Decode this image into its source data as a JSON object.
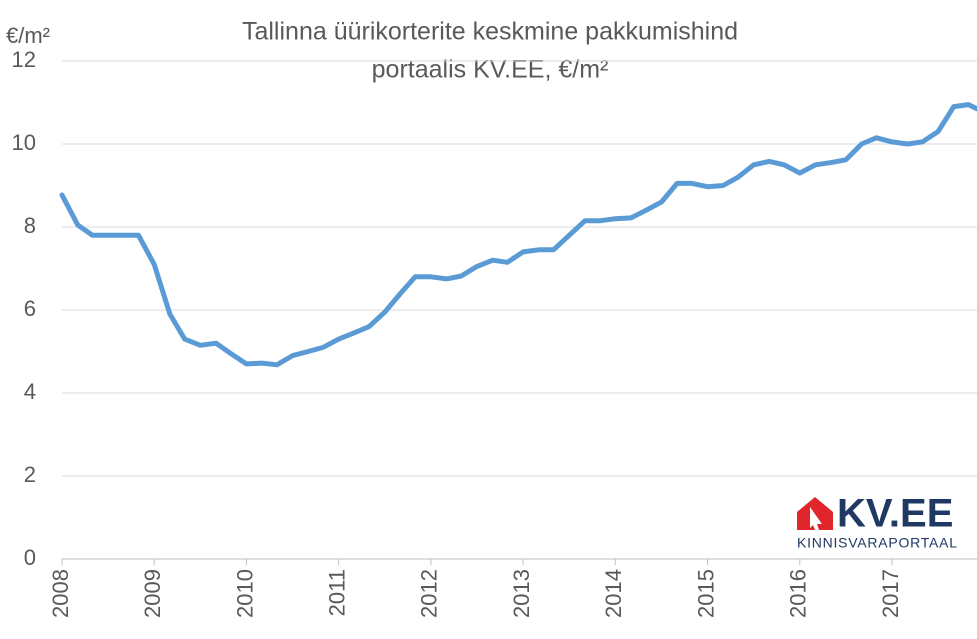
{
  "chart_data": {
    "type": "line",
    "title": [
      "Tallinna üürikorterite keskmine pakkumishind",
      "portaalis KV.EE, €/m²"
    ],
    "y_label": "€/m²",
    "x": [
      2008.0,
      2008.17,
      2008.33,
      2008.5,
      2008.67,
      2008.83,
      2009.0,
      2009.17,
      2009.33,
      2009.5,
      2009.67,
      2009.83,
      2010.0,
      2010.17,
      2010.33,
      2010.5,
      2010.67,
      2010.83,
      2011.0,
      2011.17,
      2011.33,
      2011.5,
      2011.67,
      2011.83,
      2012.0,
      2012.17,
      2012.33,
      2012.5,
      2012.67,
      2012.83,
      2013.0,
      2013.17,
      2013.33,
      2013.5,
      2013.67,
      2013.83,
      2014.0,
      2014.17,
      2014.33,
      2014.5,
      2014.67,
      2014.83,
      2015.0,
      2015.17,
      2015.33,
      2015.5,
      2015.67,
      2015.83,
      2016.0,
      2016.17,
      2016.33,
      2016.5,
      2016.67,
      2016.83,
      2017.0,
      2017.17,
      2017.33,
      2017.5,
      2017.67,
      2017.83,
      2017.92
    ],
    "series": [
      {
        "name": "Keskmine pakkumishind",
        "color": "#5b9bd5",
        "values": [
          8.77,
          8.05,
          7.8,
          7.8,
          7.8,
          7.8,
          7.1,
          5.9,
          5.3,
          5.15,
          5.2,
          4.95,
          4.7,
          4.72,
          4.68,
          4.9,
          5.0,
          5.1,
          5.3,
          5.45,
          5.6,
          5.95,
          6.4,
          6.8,
          6.8,
          6.75,
          6.82,
          7.05,
          7.2,
          7.15,
          7.4,
          7.45,
          7.45,
          7.8,
          8.15,
          8.15,
          8.2,
          8.22,
          8.4,
          8.6,
          9.05,
          9.05,
          8.97,
          9.0,
          9.2,
          9.5,
          9.58,
          9.5,
          9.3,
          9.5,
          9.55,
          9.62,
          10.0,
          10.15,
          10.05,
          10.0,
          10.05,
          10.3,
          10.9,
          10.95,
          10.85
        ]
      }
    ],
    "xlim": [
      2008,
      2017.92
    ],
    "xticks": [
      2008,
      2009,
      2010,
      2011,
      2012,
      2013,
      2014,
      2015,
      2016,
      2017
    ],
    "ylim": [
      0,
      12
    ],
    "yticks": [
      0,
      2,
      4,
      6,
      8,
      10,
      12
    ],
    "grid": true,
    "logo": {
      "name": "KV.EE",
      "tagline": "KINNISVARAPORTAAL"
    }
  }
}
